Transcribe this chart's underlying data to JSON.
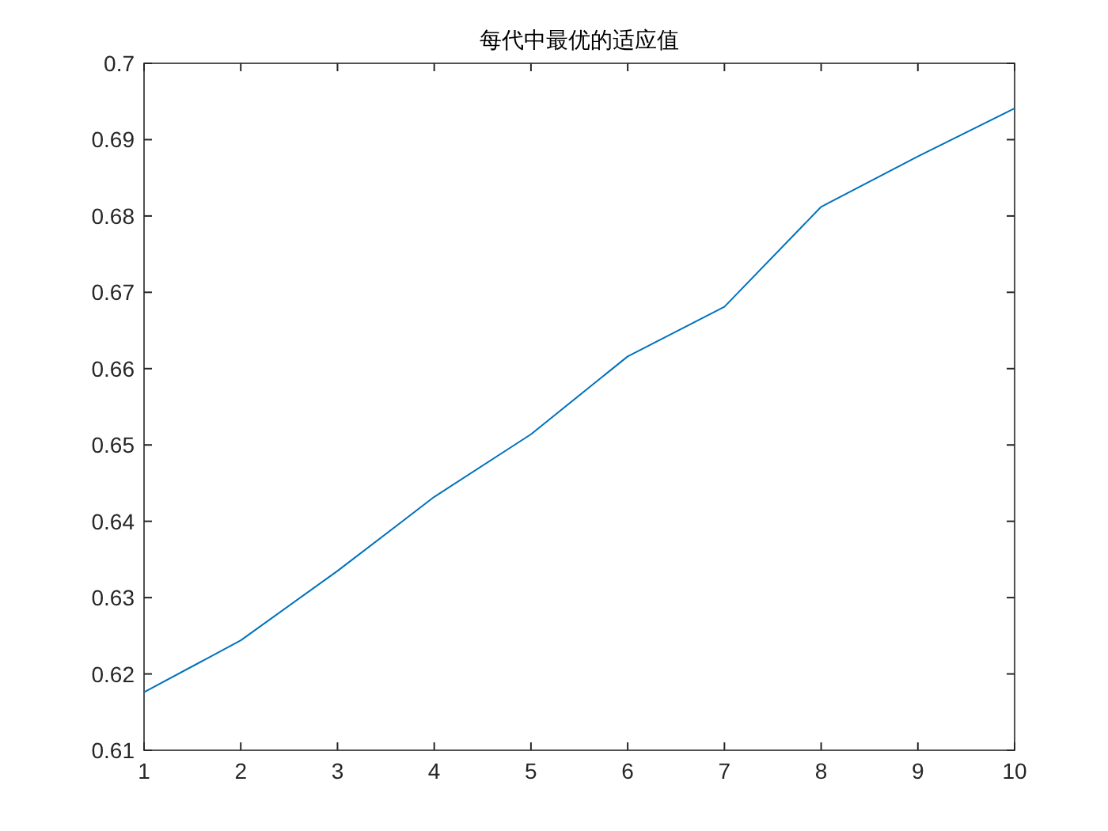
{
  "chart_data": {
    "type": "line",
    "title": "每代中最优的适应值",
    "x": [
      1,
      2,
      3,
      4,
      5,
      6,
      7,
      8,
      9,
      10
    ],
    "series": [
      {
        "color": "#0072bd",
        "values": [
          0.6176,
          0.6244,
          0.6335,
          0.6432,
          0.6514,
          0.6616,
          0.6681,
          0.6812,
          0.6878,
          0.6941
        ]
      }
    ],
    "xlim": [
      1,
      10
    ],
    "xticks": [
      1,
      2,
      3,
      4,
      5,
      6,
      7,
      8,
      9,
      10
    ],
    "ylim": [
      0.61,
      0.7
    ],
    "yticks": [
      0.61,
      0.62,
      0.63,
      0.64,
      0.65,
      0.66,
      0.67,
      0.68,
      0.69,
      0.7
    ],
    "marker": "none",
    "line_style": "solid"
  }
}
